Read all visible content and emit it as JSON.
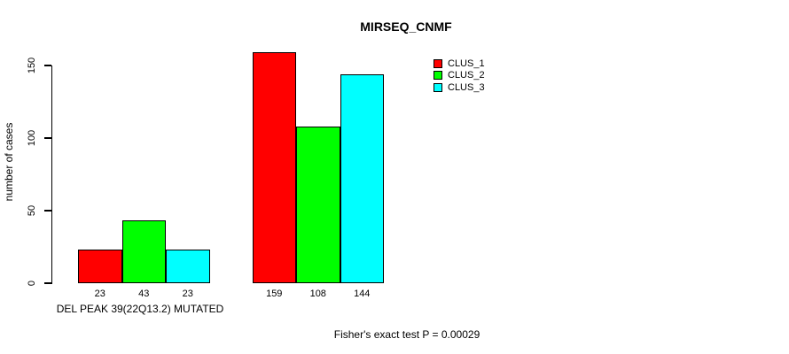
{
  "chart_data": {
    "type": "bar",
    "title": "MIRSEQ_CNMF",
    "ylabel": "number of cases",
    "xlabel": "DEL PEAK 39(22Q13.2) MUTATED",
    "yticks": [
      0,
      50,
      100,
      150
    ],
    "ylim": [
      0,
      159
    ],
    "grid": false,
    "legend_position": "top-right",
    "groups": 2,
    "series": [
      {
        "name": "CLUS_1",
        "color": "#FF0000",
        "values": [
          23,
          159
        ]
      },
      {
        "name": "CLUS_2",
        "color": "#00FF00",
        "values": [
          43,
          108
        ]
      },
      {
        "name": "CLUS_3",
        "color": "#00FFFF",
        "values": [
          23,
          144
        ]
      }
    ],
    "bar_value_labels": [
      [
        "23",
        "43",
        "23"
      ],
      [
        "159",
        "108",
        "144"
      ]
    ],
    "annotation": "Fisher's exact test P = 0.00029"
  }
}
